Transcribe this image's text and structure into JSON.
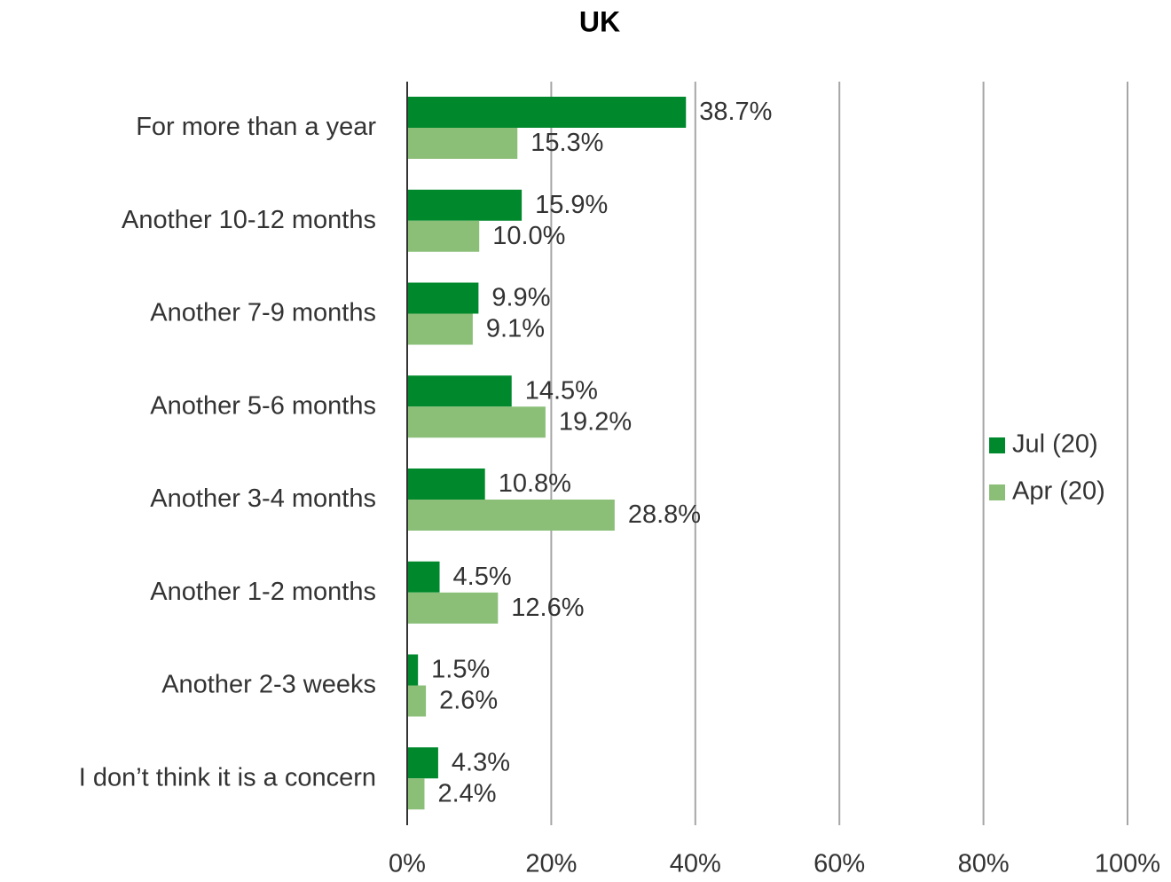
{
  "chart_data": {
    "type": "bar",
    "orientation": "horizontal",
    "title": "UK",
    "categories": [
      "For more than a year",
      "Another 10-12 months",
      "Another 7-9 months",
      "Another 5-6 months",
      "Another 3-4 months",
      "Another 1-2 months",
      "Another 2-3 weeks",
      "I don’t think it is a concern"
    ],
    "series": [
      {
        "name": "Jul (20)",
        "color": "#00892c",
        "values": [
          38.7,
          15.9,
          9.9,
          14.5,
          10.8,
          4.5,
          1.5,
          4.3
        ],
        "value_labels": [
          "38.7%",
          "15.9%",
          "9.9%",
          "14.5%",
          "10.8%",
          "4.5%",
          "1.5%",
          "4.3%"
        ]
      },
      {
        "name": "Apr (20)",
        "color": "#8bbf78",
        "values": [
          15.3,
          10.0,
          9.1,
          19.2,
          28.8,
          12.6,
          2.6,
          2.4
        ],
        "value_labels": [
          "15.3%",
          "10.0%",
          "9.1%",
          "19.2%",
          "28.8%",
          "12.6%",
          "2.6%",
          "2.4%"
        ]
      }
    ],
    "xlim": [
      0,
      100
    ],
    "xticks": [
      {
        "value": 0,
        "label": "0%"
      },
      {
        "value": 20,
        "label": "20%"
      },
      {
        "value": 40,
        "label": "40%"
      },
      {
        "value": 60,
        "label": "60%"
      },
      {
        "value": 80,
        "label": "80%"
      },
      {
        "value": 100,
        "label": "100%"
      }
    ],
    "grid": true,
    "legend": "right"
  }
}
